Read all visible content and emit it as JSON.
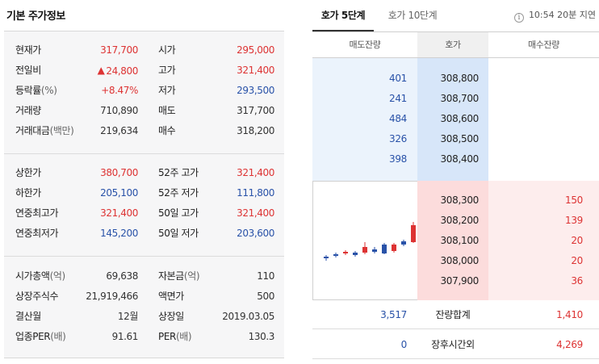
{
  "left": {
    "title": "기본 주가정보",
    "group1": [
      {
        "l1": "현재가",
        "l1s": "",
        "v1": "317,700",
        "c1": "red",
        "l2": "시가",
        "l2s": "",
        "v2": "295,000",
        "c2": "red"
      },
      {
        "l1": "전일비",
        "l1s": "",
        "v1": "24,800",
        "c1": "red",
        "l2": "고가",
        "l2s": "",
        "v2": "321,400",
        "c2": "red"
      },
      {
        "l1": "등락률",
        "l1s": "(%)",
        "v1": "+8.47%",
        "c1": "red",
        "l2": "저가",
        "l2s": "",
        "v2": "293,500",
        "c2": "blue"
      },
      {
        "l1": "거래량",
        "l1s": "",
        "v1": "710,890",
        "c1": "",
        "l2": "매도",
        "l2s": "",
        "v2": "317,700",
        "c2": ""
      },
      {
        "l1": "거래대금",
        "l1s": "(백만)",
        "v1": "219,634",
        "c1": "",
        "l2": "매수",
        "l2s": "",
        "v2": "318,200",
        "c2": ""
      }
    ],
    "change_arrow": "▲",
    "group2": [
      {
        "l1": "상한가",
        "l1s": "",
        "v1": "380,700",
        "c1": "red",
        "l2": "52주 고가",
        "l2s": "",
        "v2": "321,400",
        "c2": "red"
      },
      {
        "l1": "하한가",
        "l1s": "",
        "v1": "205,100",
        "c1": "blue",
        "l2": "52주 저가",
        "l2s": "",
        "v2": "111,800",
        "c2": "blue"
      },
      {
        "l1": "연중최고가",
        "l1s": "",
        "v1": "321,400",
        "c1": "red",
        "l2": "50일 고가",
        "l2s": "",
        "v2": "321,400",
        "c2": "red"
      },
      {
        "l1": "연중최저가",
        "l1s": "",
        "v1": "145,200",
        "c1": "blue",
        "l2": "50일 저가",
        "l2s": "",
        "v2": "203,600",
        "c2": "blue"
      }
    ],
    "group3": [
      {
        "l1": "시가총액",
        "l1s": "(억)",
        "v1": "69,638",
        "c1": "",
        "l2": "자본금",
        "l2s": "(억)",
        "v2": "110",
        "c2": ""
      },
      {
        "l1": "상장주식수",
        "l1s": "",
        "v1": "21,919,466",
        "c1": "",
        "l2": "액면가",
        "l2s": "",
        "v2": "500",
        "c2": ""
      },
      {
        "l1": "결산월",
        "l1s": "",
        "v1": "12월",
        "c1": "",
        "l2": "상장일",
        "l2s": "",
        "v2": "2019.03.05",
        "c2": ""
      },
      {
        "l1": "업종PER",
        "l1s": "(배)",
        "v1": "91.61",
        "c1": "",
        "l2": "PER",
        "l2s": "(배)",
        "v2": "130.3",
        "c2": ""
      }
    ]
  },
  "right": {
    "tab_5": "호가 5단계",
    "tab_10": "호가 10단계",
    "info_icon": "i",
    "delay_text": "10:54 20분 지연",
    "headers": {
      "sell": "매도잔량",
      "price": "호가",
      "buy": "매수잔량"
    },
    "asks": [
      {
        "volume": "401",
        "price": "308,800"
      },
      {
        "volume": "241",
        "price": "308,700"
      },
      {
        "volume": "484",
        "price": "308,600"
      },
      {
        "volume": "326",
        "price": "308,500"
      },
      {
        "volume": "398",
        "price": "308,400"
      }
    ],
    "bids": [
      {
        "price": "308,300",
        "volume": "150"
      },
      {
        "price": "308,200",
        "volume": "139"
      },
      {
        "price": "308,100",
        "volume": "20"
      },
      {
        "price": "308,000",
        "volume": "20"
      },
      {
        "price": "307,900",
        "volume": "36"
      }
    ],
    "total": {
      "sell": "3,517",
      "label": "잔량합계",
      "buy": "1,410"
    },
    "after_hours": {
      "sell": "0",
      "label": "장후시간외",
      "buy": "4,269"
    },
    "colors": {
      "up": "#d33",
      "down": "#2952a8"
    },
    "candles": [
      {
        "o": 0,
        "c": 2,
        "h": 4,
        "l": -3,
        "dir": "down"
      },
      {
        "o": 3,
        "c": 5,
        "h": 7,
        "l": 1,
        "dir": "down"
      },
      {
        "o": 8,
        "c": 6,
        "h": 10,
        "l": 4,
        "dir": "up"
      },
      {
        "o": 4,
        "c": 7,
        "h": 9,
        "l": 2,
        "dir": "down"
      },
      {
        "o": 7,
        "c": 14,
        "h": 20,
        "l": 5,
        "dir": "up"
      },
      {
        "o": 11,
        "c": 8,
        "h": 14,
        "l": 6,
        "dir": "down"
      },
      {
        "o": 6,
        "c": 17,
        "h": 19,
        "l": 5,
        "dir": "down"
      },
      {
        "o": 17,
        "c": 9,
        "h": 19,
        "l": 7,
        "dir": "up"
      },
      {
        "o": 17,
        "c": 21,
        "h": 23,
        "l": 15,
        "dir": "down"
      },
      {
        "o": 20,
        "c": 41,
        "h": 45,
        "l": 19,
        "dir": "up"
      }
    ]
  }
}
